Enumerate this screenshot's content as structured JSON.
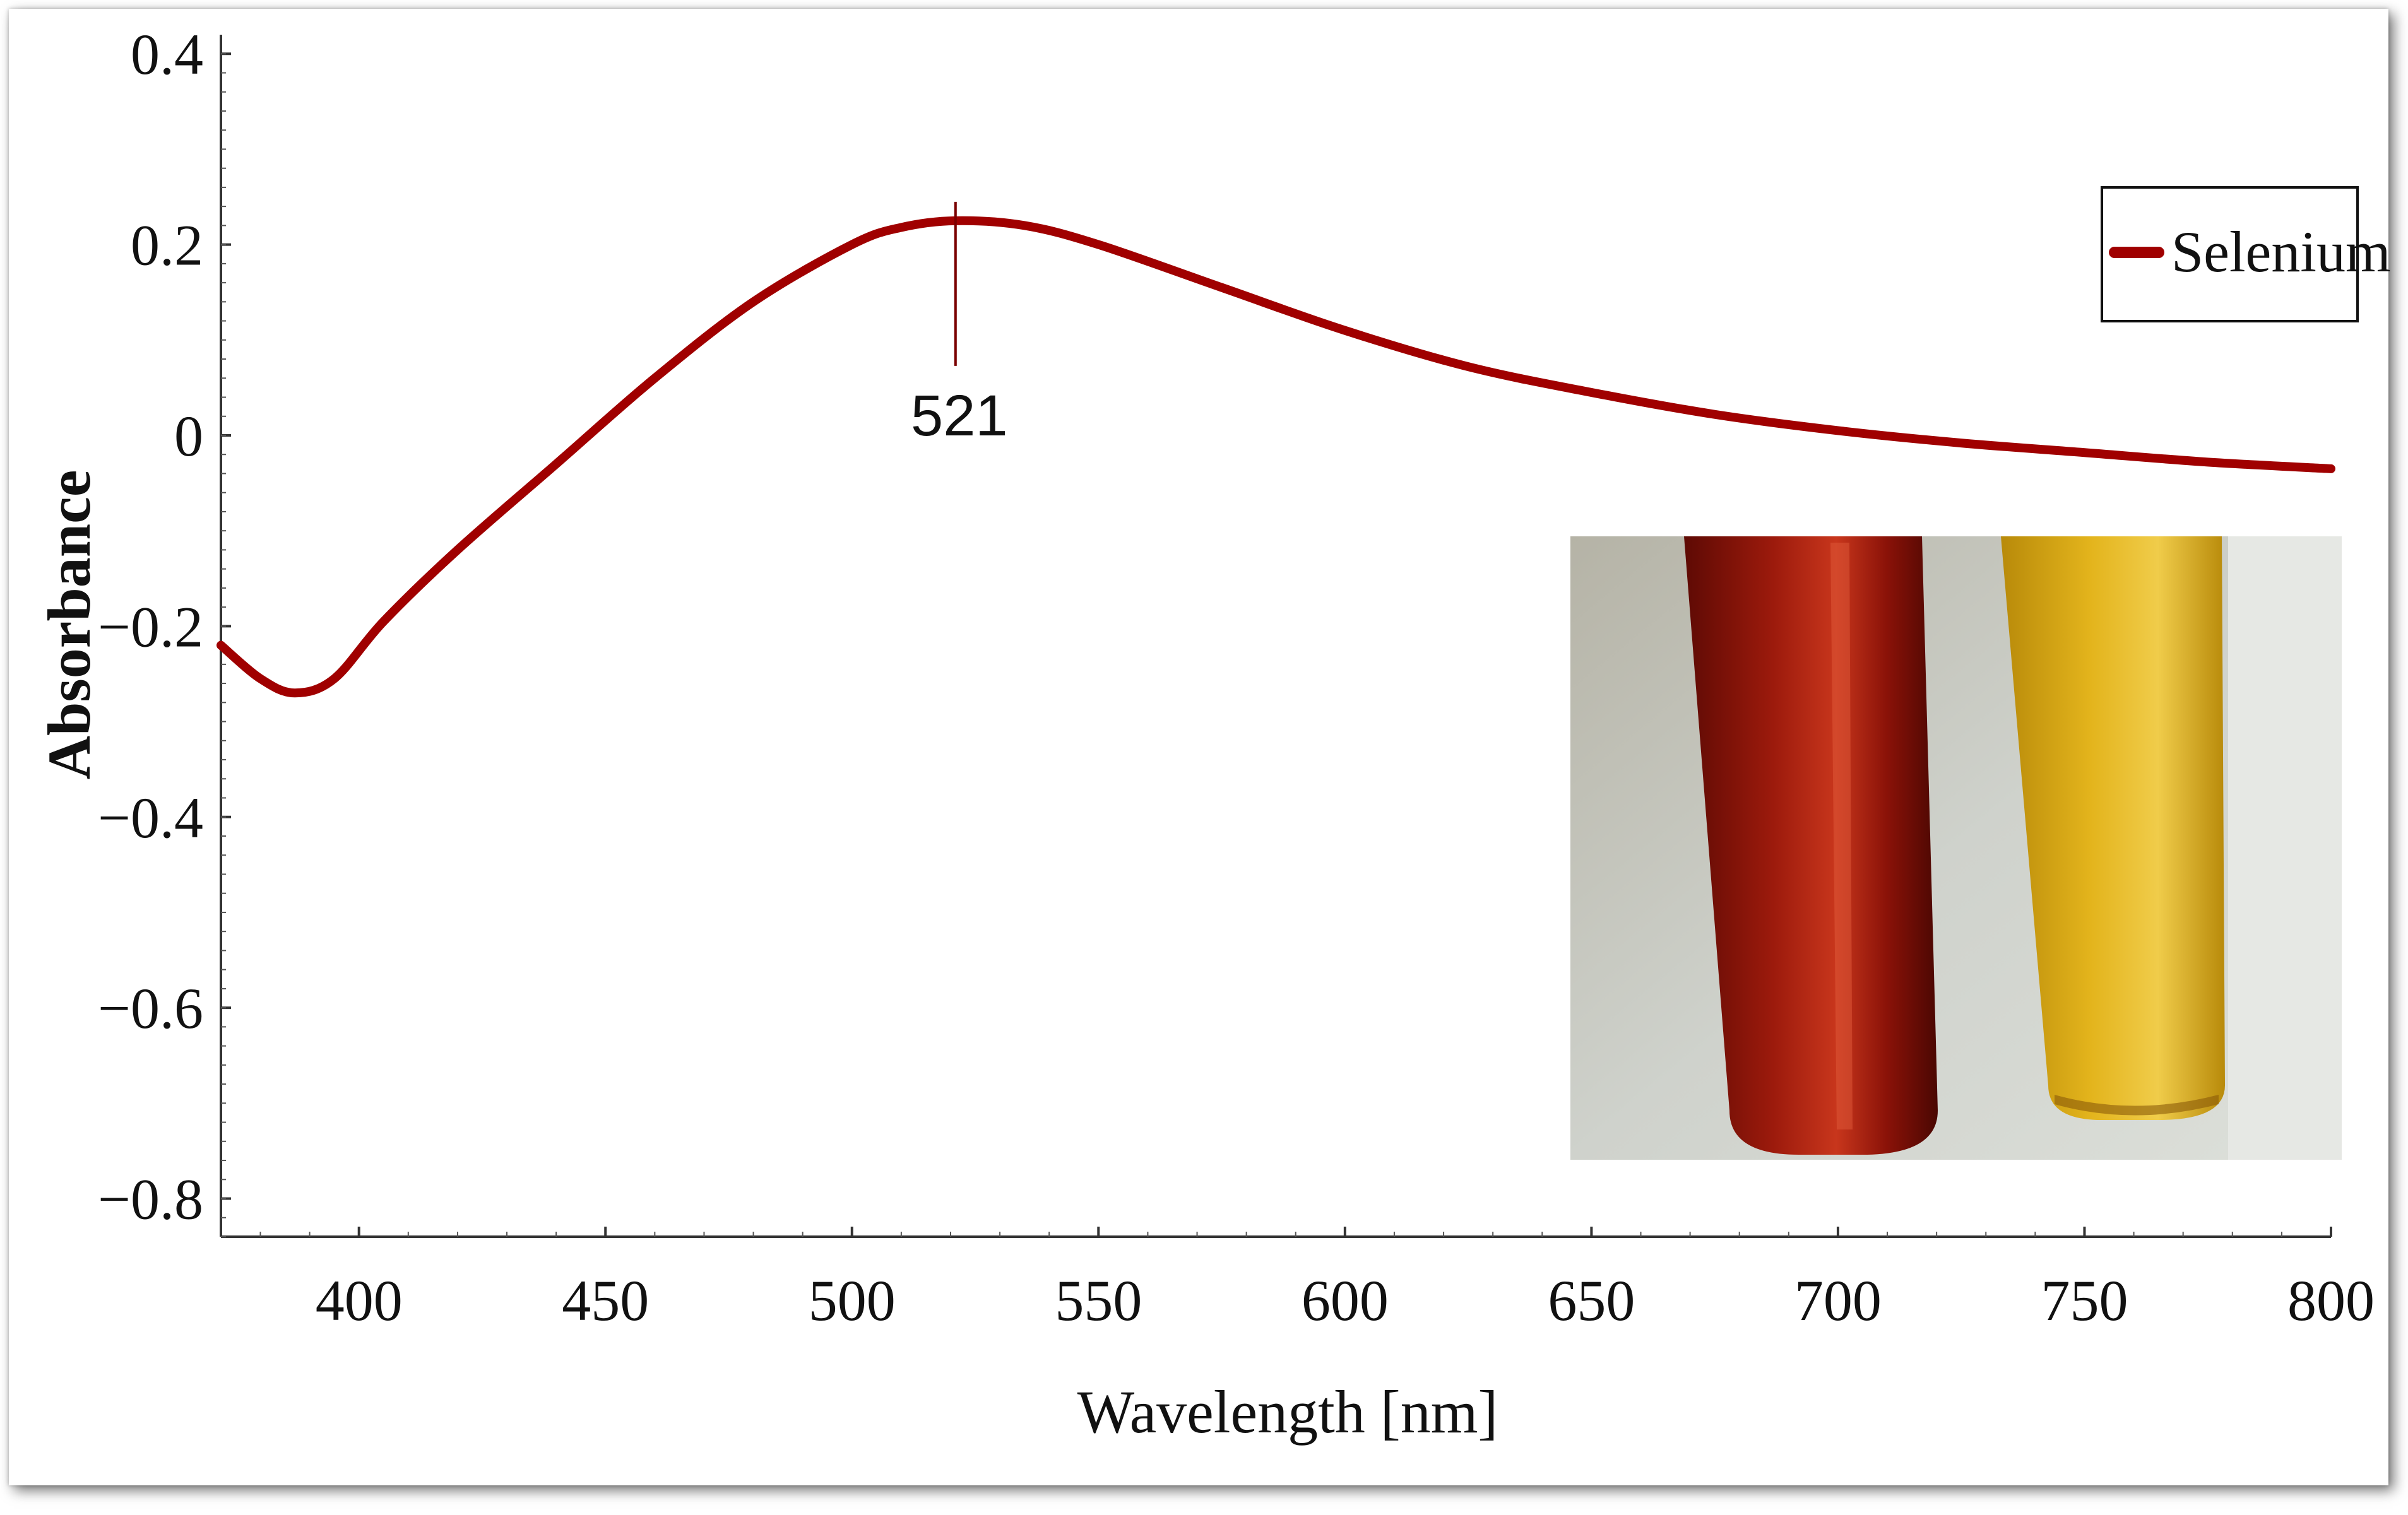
{
  "chart_data": {
    "type": "line",
    "xlabel": "Wavelength [nm]",
    "ylabel": "Absorbance",
    "xlim": [
      372,
      800
    ],
    "ylim": [
      -0.84,
      0.42
    ],
    "x_ticks": [
      400,
      450,
      500,
      550,
      600,
      650,
      700,
      750,
      800
    ],
    "y_ticks": [
      0.4,
      0.2,
      0,
      -0.2,
      -0.4,
      -0.6,
      -0.8
    ],
    "y_tick_labels": [
      "0.4",
      "0.2",
      "0",
      "−0.2",
      "−0.4",
      "−0.6",
      "−0.8"
    ],
    "legend_position": "top-right",
    "grid": false,
    "series": [
      {
        "name": "Selenium",
        "color": "#a00000",
        "x": [
          372,
          380,
          387,
          395,
          405,
          420,
          440,
          460,
          480,
          500,
          510,
          521,
          535,
          550,
          575,
          600,
          625,
          650,
          675,
          700,
          725,
          750,
          775,
          800
        ],
        "y": [
          -0.22,
          -0.255,
          -0.27,
          -0.255,
          -0.195,
          -0.12,
          -0.03,
          0.06,
          0.14,
          0.2,
          0.218,
          0.225,
          0.22,
          0.2,
          0.155,
          0.11,
          0.072,
          0.045,
          0.022,
          0.005,
          -0.008,
          -0.018,
          -0.028,
          -0.035
        ]
      }
    ],
    "annotations": [
      {
        "text": "521",
        "x": 521,
        "y": 0.225
      }
    ]
  },
  "inset_photo": {
    "description_colors": {
      "red_tube": "#8b1208",
      "yellow_tube": "#d8a412",
      "background": "#c9ccc6"
    }
  }
}
